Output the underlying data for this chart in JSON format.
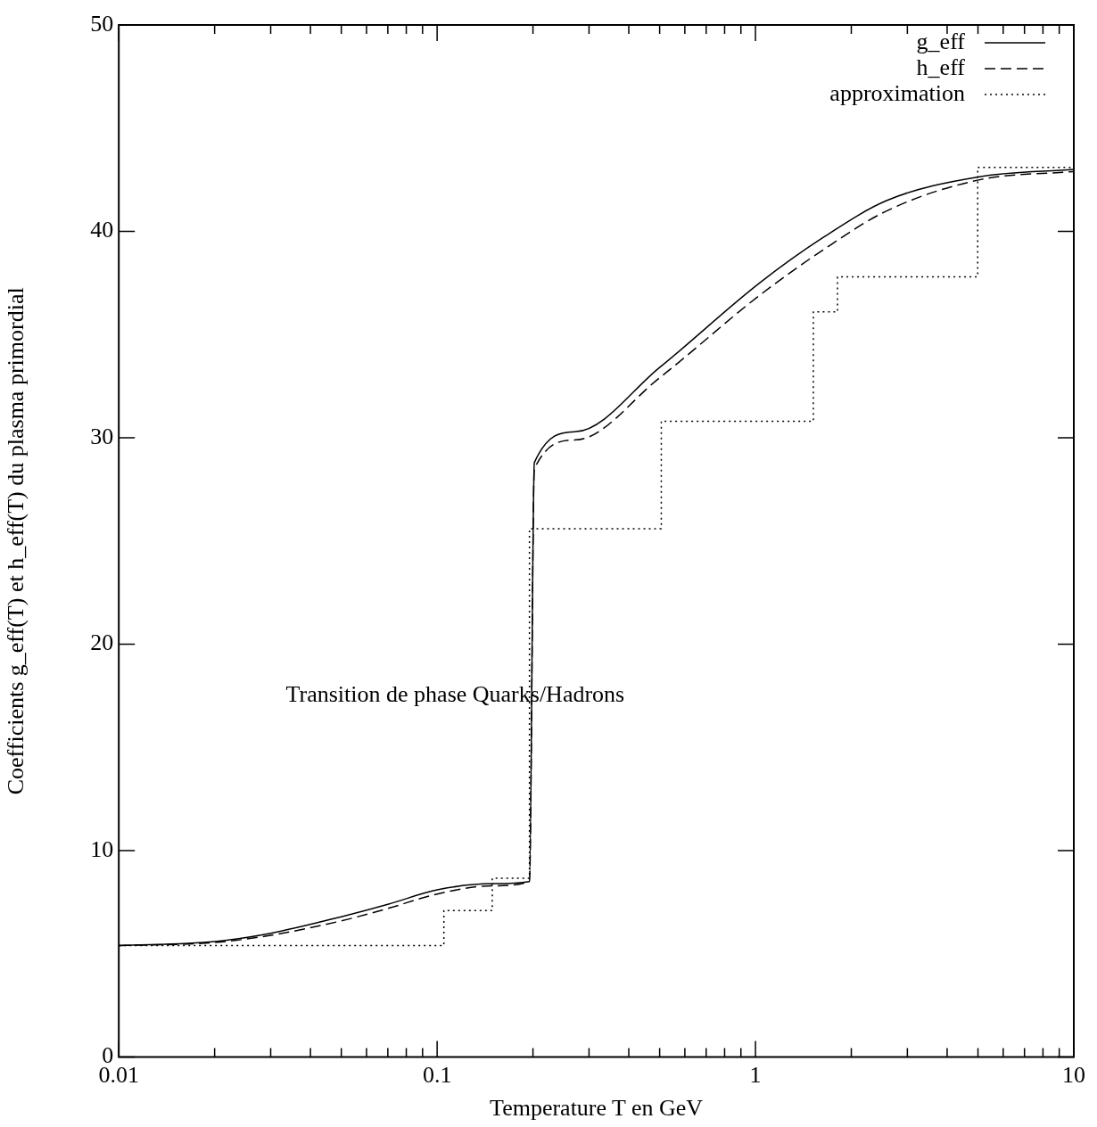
{
  "chart_data": {
    "type": "line",
    "xlabel": "Temperature T en GeV",
    "ylabel": "Coefficients g_eff(T) et h_eff(T) du plasma primordial",
    "annotations": [
      "Transition de phase Quarks/Hadrons"
    ],
    "log": "x",
    "xlim": [
      0.01,
      10
    ],
    "ylim": [
      0,
      50
    ],
    "xticks": [
      0.01,
      {
        "value": 0.02,
        "label": null
      },
      {
        "value": 0.03,
        "label": null
      },
      {
        "value": 0.04,
        "label": null
      },
      {
        "value": 0.05,
        "label": null
      },
      {
        "value": 0.06,
        "label": null
      },
      {
        "value": 0.07,
        "label": null
      },
      {
        "value": 0.08,
        "label": null
      },
      {
        "value": 0.09,
        "label": null
      },
      0.1,
      {
        "value": 0.2,
        "label": null
      },
      {
        "value": 0.3,
        "label": null
      },
      {
        "value": 0.4,
        "label": null
      },
      {
        "value": 0.5,
        "label": null
      },
      {
        "value": 0.6,
        "label": null
      },
      {
        "value": 0.7,
        "label": null
      },
      {
        "value": 0.8,
        "label": null
      },
      {
        "value": 0.9,
        "label": null
      },
      1,
      {
        "value": 2,
        "label": null
      },
      {
        "value": 3,
        "label": null
      },
      {
        "value": 4,
        "label": null
      },
      {
        "value": 5,
        "label": null
      },
      {
        "value": 6,
        "label": null
      },
      {
        "value": 7,
        "label": null
      },
      {
        "value": 8,
        "label": null
      },
      {
        "value": 9,
        "label": null
      },
      10
    ],
    "yticks": [
      0,
      10,
      20,
      30,
      40,
      50
    ],
    "grid": false,
    "legend": "top right",
    "marker": "none",
    "series": [
      {
        "name": "g_eff",
        "color": "#000000",
        "line_style": "solid",
        "x": [
          0.01,
          0.02,
          0.03,
          0.05,
          0.07,
          0.1,
          0.15,
          0.195,
          0.202,
          0.273,
          0.499,
          1.03,
          1.63,
          2.59,
          5.06,
          10
        ],
        "values": [
          5.4,
          5.6,
          6.0,
          6.8,
          7.4,
          8.1,
          8.4,
          8.5,
          28.8,
          30.3,
          33.4,
          37.5,
          39.7,
          41.5,
          42.65,
          43.0
        ]
      },
      {
        "name": "h_eff",
        "color": "#000000",
        "line_style": "dashed",
        "x": [
          0.01,
          0.02,
          0.03,
          0.05,
          0.07,
          0.1,
          0.15,
          0.195,
          0.202,
          0.273,
          0.499,
          1.03,
          1.63,
          2.59,
          5.06,
          10
        ],
        "values": [
          5.4,
          5.55,
          5.9,
          6.6,
          7.2,
          7.9,
          8.3,
          8.5,
          28.5,
          29.9,
          32.9,
          36.9,
          39.1,
          41.0,
          42.5,
          42.9
        ]
      },
      {
        "name": "approximation",
        "type": "step",
        "color": "#000000",
        "line_style": "dotted",
        "x": [
          0.01,
          0.105,
          0.149,
          0.195,
          0.506,
          1.52,
          1.81,
          4.99,
          10
        ],
        "values": [
          5.4,
          7.1,
          8.66,
          25.6,
          30.8,
          36.1,
          37.8,
          43.1,
          43.1
        ]
      }
    ]
  }
}
